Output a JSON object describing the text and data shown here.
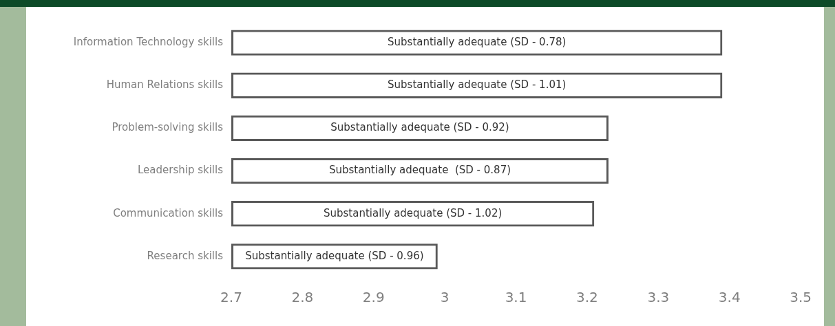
{
  "chart_data": {
    "type": "bar",
    "orientation": "horizontal",
    "categories": [
      "Information Technology skills",
      "Human Relations skills",
      "Problem-solving skills",
      "Leadership skills",
      "Communication skills",
      "Research skills"
    ],
    "values": [
      3.39,
      3.39,
      3.23,
      3.23,
      3.21,
      2.99
    ],
    "annotations": [
      "Substantially adequate (SD - 0.78)",
      "Substantially adequate (SD - 1.01)",
      "Substantially adequate (SD - 0.92)",
      "Substantially adequate  (SD - 0.87)",
      "Substantially adequate (SD - 1.02)",
      "Substantially adequate (SD - 0.96)"
    ],
    "color": "#595959",
    "xlim": [
      2.7,
      3.5
    ],
    "xticks": [
      2.7,
      2.8,
      2.9,
      3,
      3.1,
      3.2,
      3.3,
      3.4,
      3.5
    ],
    "grid": false,
    "legend": false
  }
}
